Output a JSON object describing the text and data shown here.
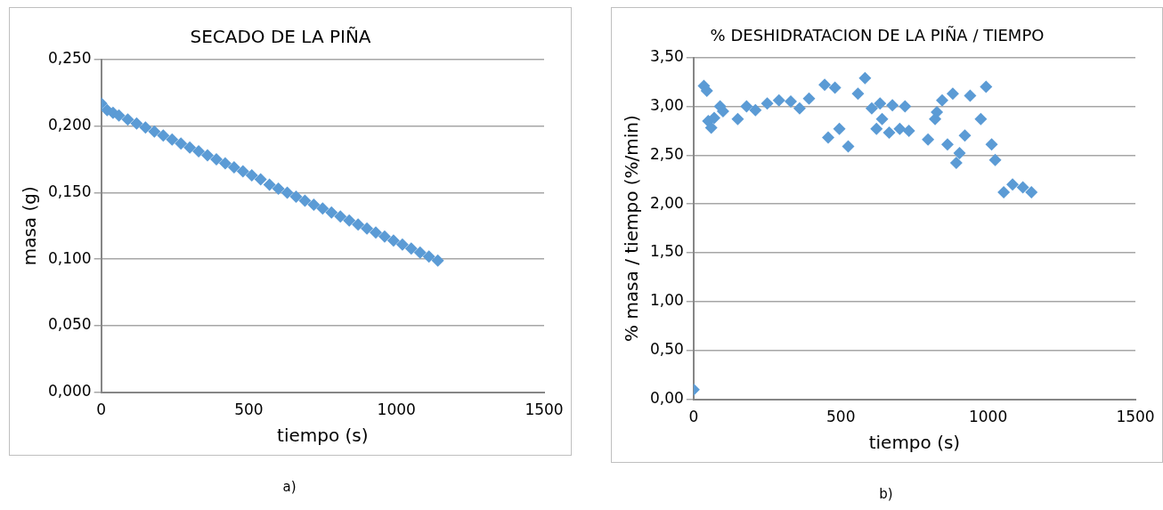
{
  "chart_data": [
    {
      "type": "scatter",
      "title": "SECADO DE LA PIÑA",
      "xlabel": "tiempo (s)",
      "ylabel": "masa (g)",
      "annotations": [
        "a)"
      ],
      "marker": "diamond",
      "grid": "y",
      "legend": false,
      "xlim": [
        0,
        1500
      ],
      "xticks": [
        0,
        500,
        1000,
        1500
      ],
      "ylim": [
        0,
        0.25
      ],
      "yticks": [
        {
          "value": 0,
          "label": "0,000"
        },
        {
          "value": 0.05,
          "label": "0,050"
        },
        {
          "value": 0.1,
          "label": "0,100"
        },
        {
          "value": 0.15,
          "label": "0,150"
        },
        {
          "value": 0.2,
          "label": "0,200"
        },
        {
          "value": 0.25,
          "label": "0,250"
        }
      ],
      "series": [
        {
          "color": "#5b9bd5",
          "x": [
            0,
            20,
            40,
            60,
            90,
            120,
            150,
            180,
            210,
            240,
            270,
            300,
            330,
            360,
            390,
            420,
            450,
            480,
            510,
            540,
            570,
            600,
            630,
            660,
            690,
            720,
            750,
            780,
            810,
            840,
            870,
            900,
            930,
            960,
            990,
            1020,
            1050,
            1080,
            1110,
            1140
          ],
          "values": [
            0.217,
            0.212,
            0.21,
            0.208,
            0.205,
            0.202,
            0.199,
            0.196,
            0.193,
            0.19,
            0.187,
            0.184,
            0.181,
            0.178,
            0.175,
            0.172,
            0.169,
            0.166,
            0.163,
            0.16,
            0.156,
            0.153,
            0.15,
            0.147,
            0.144,
            0.141,
            0.138,
            0.135,
            0.132,
            0.129,
            0.126,
            0.123,
            0.12,
            0.117,
            0.114,
            0.111,
            0.108,
            0.105,
            0.102,
            0.099
          ]
        }
      ]
    },
    {
      "type": "scatter",
      "title": "% DESHIDRATACION DE LA PIÑA / TIEMPO",
      "xlabel": "tiempo (s)",
      "ylabel": "% masa / tiempo (%/min)",
      "annotations": [
        "b)"
      ],
      "marker": "diamond",
      "grid": "y",
      "legend": false,
      "xlim": [
        0,
        1500
      ],
      "xticks": [
        0,
        500,
        1000,
        1500
      ],
      "ylim": [
        0,
        3.5
      ],
      "yticks": [
        {
          "value": 0,
          "label": "0,00"
        },
        {
          "value": 0.5,
          "label": "0,50"
        },
        {
          "value": 1,
          "label": "1,00"
        },
        {
          "value": 1.5,
          "label": "1,50"
        },
        {
          "value": 2,
          "label": "2,00"
        },
        {
          "value": 2.5,
          "label": "2,50"
        },
        {
          "value": 3,
          "label": "3,00"
        },
        {
          "value": 3.5,
          "label": "3,50"
        }
      ],
      "series": [
        {
          "color": "#5b9bd5",
          "x": [
            0,
            35,
            45,
            50,
            60,
            70,
            90,
            100,
            150,
            180,
            210,
            250,
            290,
            330,
            360,
            392,
            445,
            457,
            480,
            495,
            525,
            558,
            582,
            605,
            621,
            633,
            640,
            664,
            675,
            700,
            718,
            731,
            796,
            820,
            826,
            844,
            862,
            880,
            892,
            903,
            921,
            939,
            975,
            993,
            1012,
            1024,
            1053,
            1083,
            1118,
            1147
          ],
          "values": [
            0.1,
            3.21,
            3.16,
            2.85,
            2.78,
            2.88,
            3.0,
            2.95,
            2.87,
            3.0,
            2.96,
            3.03,
            3.06,
            3.05,
            2.98,
            3.08,
            3.22,
            2.68,
            3.19,
            2.77,
            2.59,
            3.13,
            3.29,
            2.98,
            2.77,
            3.03,
            2.87,
            2.73,
            3.01,
            2.77,
            3.0,
            2.75,
            2.66,
            2.87,
            2.94,
            3.06,
            2.61,
            3.13,
            2.42,
            2.52,
            2.7,
            3.11,
            2.87,
            3.2,
            2.61,
            2.45,
            2.12,
            2.2,
            2.17,
            2.12
          ]
        }
      ]
    }
  ]
}
